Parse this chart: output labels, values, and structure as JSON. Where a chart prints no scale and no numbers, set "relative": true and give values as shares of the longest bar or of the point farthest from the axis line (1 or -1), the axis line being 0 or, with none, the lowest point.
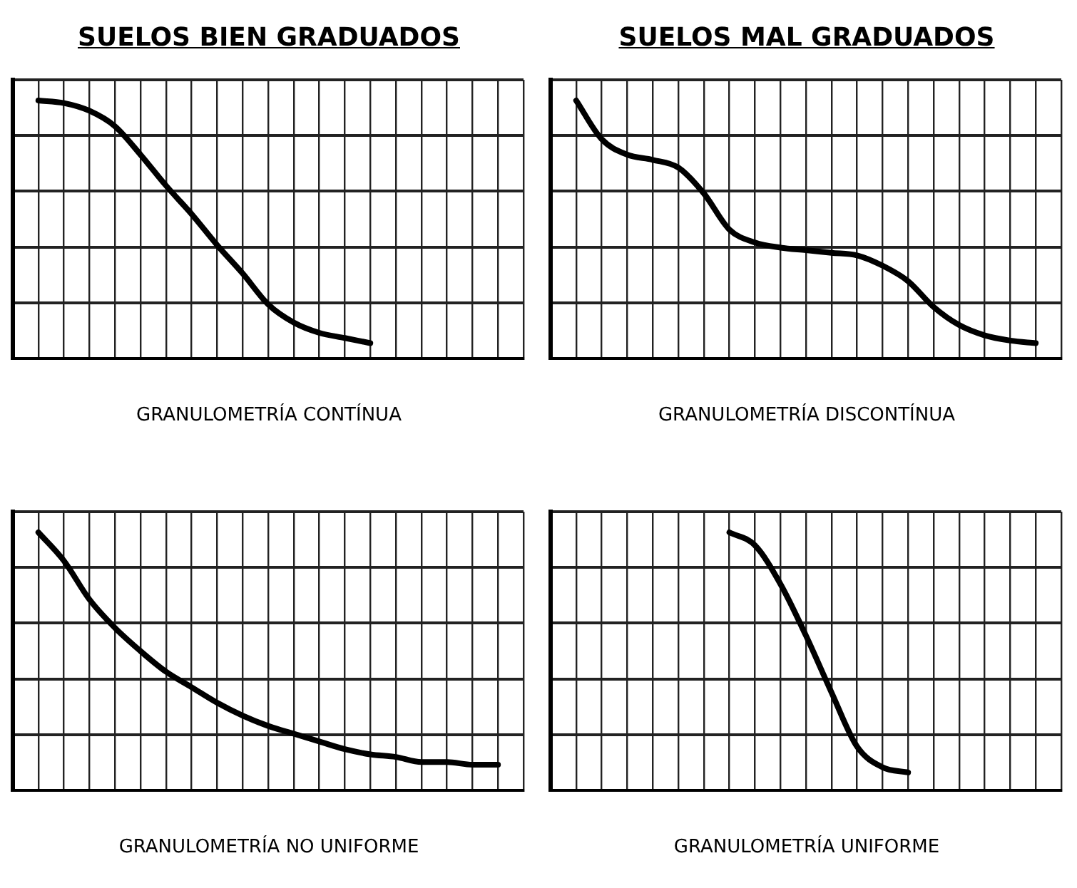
{
  "chart_data": [
    {
      "type": "line",
      "title": "SUELOS BIEN GRADUADOS",
      "xlabel": "GRANULOMETRÍA CONTÍNUA",
      "relative": true,
      "grid": true,
      "color": "#000000",
      "categories": [
        null,
        null,
        null,
        null,
        null,
        null,
        null,
        null,
        null,
        null,
        null,
        null,
        null,
        null,
        null,
        null,
        null,
        null,
        null,
        null,
        null
      ],
      "values": [
        null,
        1,
        0.99,
        0.96,
        0.9,
        0.79,
        0.67,
        0.56,
        0.44,
        0.33,
        0.21,
        0.14,
        0.1,
        0.08,
        0.06,
        null,
        null,
        null,
        null,
        null,
        null
      ]
    },
    {
      "type": "line",
      "title": "SUELOS MAL GRADUADOS",
      "xlabel": "GRANULOMETRÍA DISCONTÍNUA",
      "relative": true,
      "grid": true,
      "color": "#000000",
      "categories": [
        null,
        null,
        null,
        null,
        null,
        null,
        null,
        null,
        null,
        null,
        null,
        null,
        null,
        null,
        null,
        null,
        null,
        null,
        null,
        null,
        null
      ],
      "values": [
        null,
        1,
        0.85,
        0.79,
        0.77,
        0.74,
        0.64,
        0.5,
        0.45,
        0.43,
        0.42,
        0.41,
        0.4,
        0.36,
        0.3,
        0.2,
        0.13,
        0.09,
        0.07,
        0.06,
        null
      ]
    },
    {
      "type": "line",
      "xlabel": "GRANULOMETRÍA NO UNIFORME",
      "relative": true,
      "grid": true,
      "color": "#000000",
      "categories": [
        null,
        null,
        null,
        null,
        null,
        null,
        null,
        null,
        null,
        null,
        null,
        null,
        null,
        null,
        null,
        null,
        null,
        null,
        null,
        null,
        null
      ],
      "values": [
        null,
        1,
        0.89,
        0.74,
        0.63,
        0.54,
        0.46,
        0.4,
        0.34,
        0.29,
        0.25,
        0.22,
        0.19,
        0.16,
        0.14,
        0.13,
        0.11,
        0.11,
        0.1,
        0.1,
        null
      ]
    },
    {
      "type": "line",
      "xlabel": "GRANULOMETRÍA UNIFORME",
      "relative": true,
      "grid": true,
      "color": "#000000",
      "categories": [
        null,
        null,
        null,
        null,
        null,
        null,
        null,
        null,
        null,
        null,
        null,
        null,
        null,
        null,
        null,
        null,
        null,
        null,
        null,
        null,
        null
      ],
      "values": [
        null,
        null,
        null,
        null,
        null,
        null,
        null,
        1,
        0.95,
        0.8,
        0.6,
        0.38,
        0.17,
        0.09,
        0.07,
        null,
        null,
        null,
        null,
        null,
        null
      ]
    }
  ]
}
